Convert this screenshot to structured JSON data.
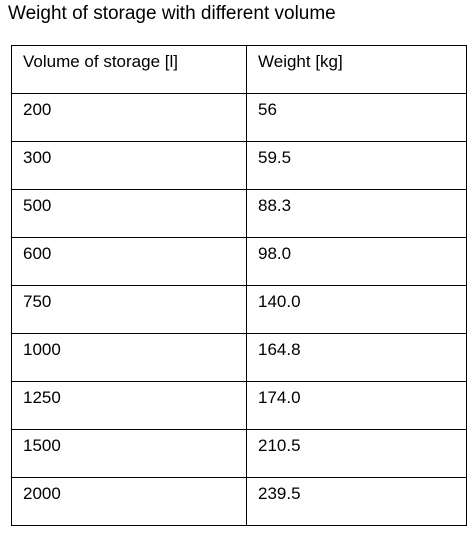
{
  "caption": "Weight of storage with different volume",
  "table": {
    "headers": [
      "Volume of storage [l]",
      "Weight [kg]"
    ],
    "rows": [
      [
        "200",
        "56"
      ],
      [
        "300",
        "59.5"
      ],
      [
        "500",
        "88.3"
      ],
      [
        "600",
        "98.0"
      ],
      [
        "750",
        "140.0"
      ],
      [
        "1000",
        "164.8"
      ],
      [
        "1250",
        "174.0"
      ],
      [
        "1500",
        "210.5"
      ],
      [
        "2000",
        "239.5"
      ]
    ]
  }
}
